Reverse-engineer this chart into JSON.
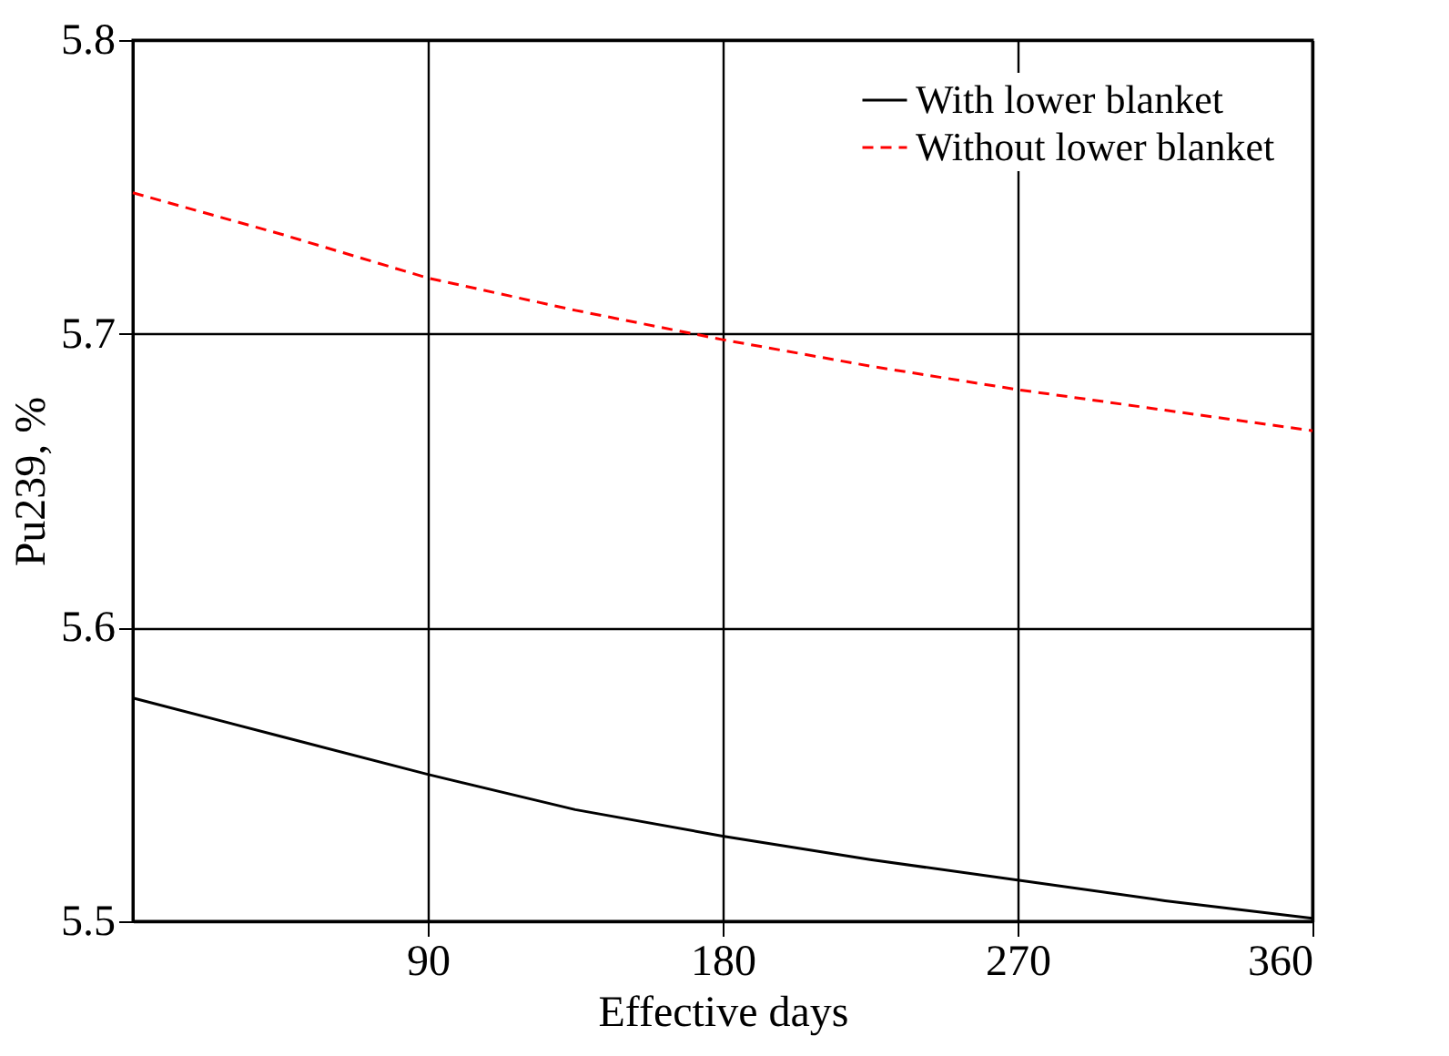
{
  "chart_data": {
    "type": "line",
    "xlabel": "Effective days",
    "ylabel": "Pu239, %",
    "x": [
      0,
      45,
      90,
      135,
      180,
      225,
      270,
      315,
      360
    ],
    "series": [
      {
        "name": "With lower blanket",
        "color": "#000000",
        "line_style": "solid",
        "values": [
          5.576,
          5.563,
          5.55,
          5.538,
          5.529,
          5.521,
          5.514,
          5.507,
          5.501
        ]
      },
      {
        "name": "Without lower blanket",
        "color": "#ff0000",
        "line_style": "dashed",
        "values": [
          5.748,
          5.734,
          5.719,
          5.708,
          5.698,
          5.689,
          5.681,
          5.674,
          5.667
        ]
      }
    ],
    "xlim": [
      0,
      360
    ],
    "xticks": [
      90,
      180,
      270,
      360
    ],
    "ylim": [
      5.5,
      5.8
    ],
    "yticks": [
      5.5,
      5.6,
      5.7,
      5.8
    ],
    "grid": true,
    "legend": "top right",
    "marker": "none"
  }
}
